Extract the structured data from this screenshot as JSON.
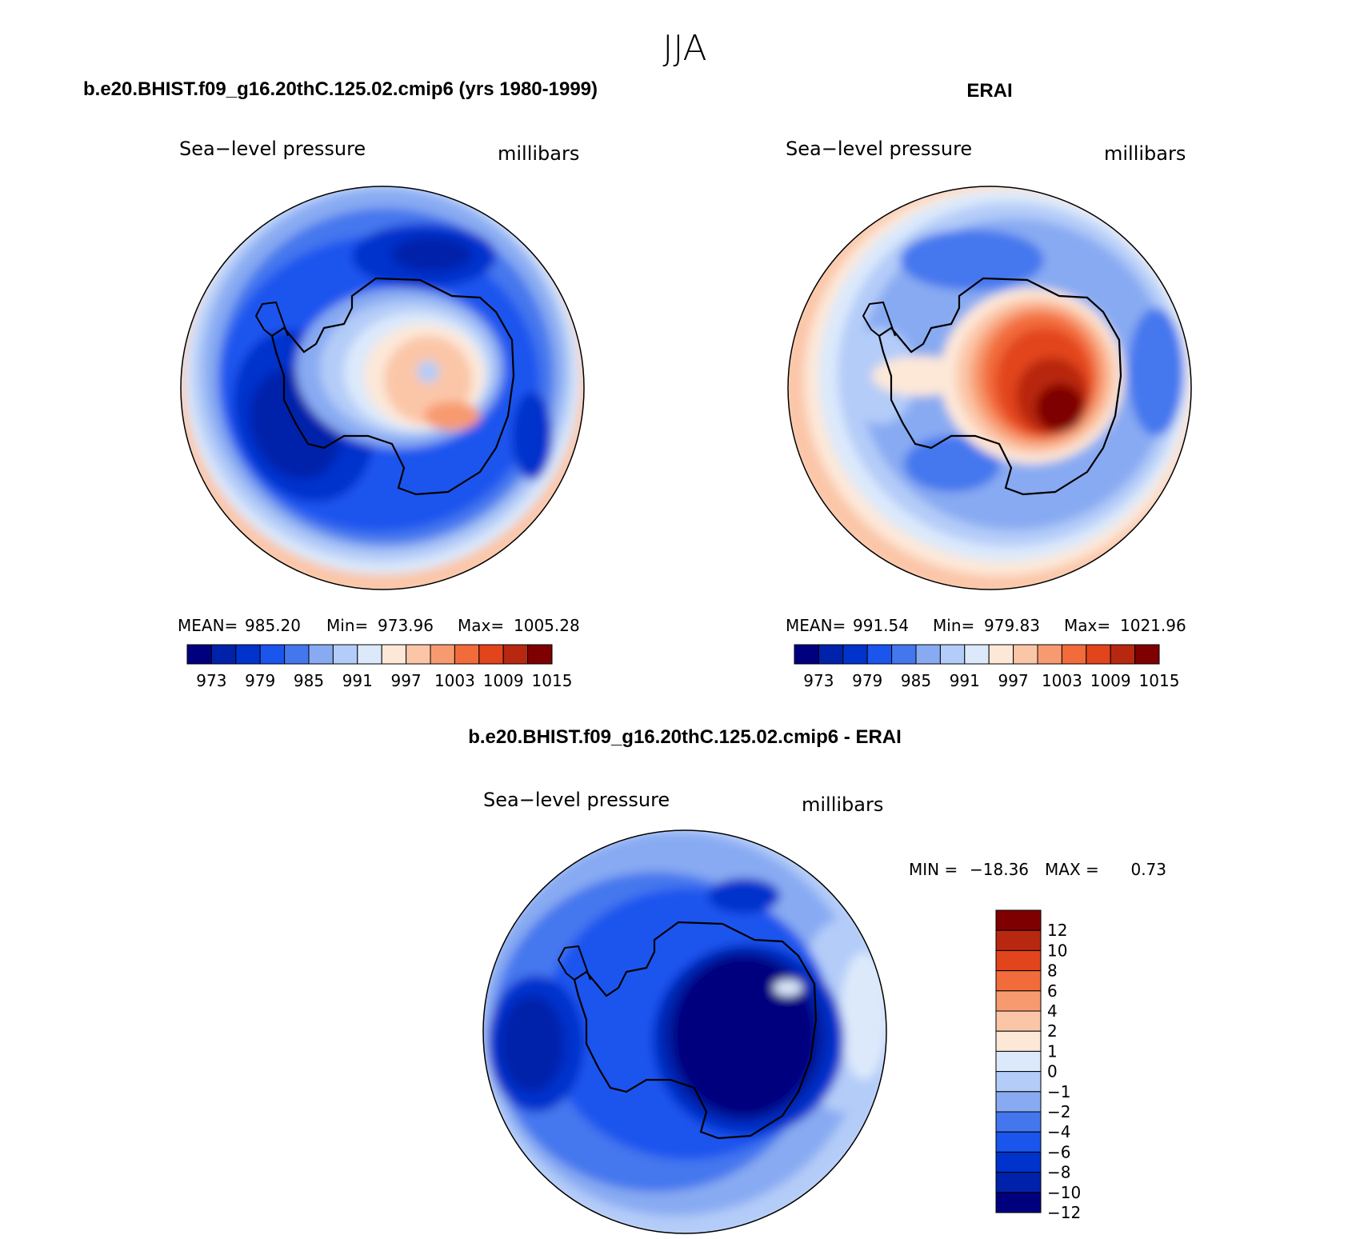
{
  "season": "JJA",
  "palette_blue_red": [
    "#00007f",
    "#0022aa",
    "#0033cc",
    "#1a55ee",
    "#4477ee",
    "#88aaf2",
    "#b4ccf8",
    "#dbe9fb",
    "#fde8d8",
    "#fbc6a8",
    "#f89a70",
    "#f26b3a",
    "#e2441c",
    "#b82810",
    "#7f0000"
  ],
  "palette_diff": [
    "#00007f",
    "#0022aa",
    "#0033cc",
    "#1a55ee",
    "#4477ee",
    "#88aaf2",
    "#b4ccf8",
    "#dbe9fb",
    "#fde8d8",
    "#fbc6a8",
    "#f89a70",
    "#f26b3a",
    "#e2441c",
    "#b82810",
    "#7f0000"
  ],
  "chart_data": [
    {
      "type": "heatmap",
      "projection": "south-polar-stereographic",
      "title": "b.e20.BHIST.f09_g16.20thC.125.02.cmip6 (yrs 1980-1999)",
      "left_label": "Sea−level pressure",
      "right_label": "millibars",
      "stats": {
        "mean_label": "MEAN=",
        "mean": "985.20",
        "min_label": "Min=",
        "min": "973.96",
        "max_label": "Max=",
        "max": "1005.28"
      },
      "colorbar": {
        "orientation": "horizontal",
        "levels": [
          973,
          976,
          979,
          982,
          985,
          988,
          991,
          994,
          997,
          1000,
          1003,
          1006,
          1009,
          1012,
          1015
        ],
        "tick_labels": [
          "973",
          "979",
          "985",
          "991",
          "997",
          "1003",
          "1009",
          "1015"
        ]
      }
    },
    {
      "type": "heatmap",
      "projection": "south-polar-stereographic",
      "title": "ERAI",
      "left_label": "Sea−level pressure",
      "right_label": "millibars",
      "stats": {
        "mean_label": "MEAN=",
        "mean": "991.54",
        "min_label": "Min=",
        "min": "979.83",
        "max_label": "Max=",
        "max": "1021.96"
      },
      "colorbar": {
        "orientation": "horizontal",
        "levels": [
          973,
          976,
          979,
          982,
          985,
          988,
          991,
          994,
          997,
          1000,
          1003,
          1006,
          1009,
          1012,
          1015
        ],
        "tick_labels": [
          "973",
          "979",
          "985",
          "991",
          "997",
          "1003",
          "1009",
          "1015"
        ]
      }
    },
    {
      "type": "heatmap",
      "projection": "south-polar-stereographic",
      "title": "b.e20.BHIST.f09_g16.20thC.125.02.cmip6 - ERAI",
      "left_label": "Sea−level pressure",
      "right_label": "millibars",
      "stats": {
        "min_label": "MIN =",
        "min": "−18.36",
        "max_label": "MAX =",
        "max": "0.73"
      },
      "colorbar": {
        "orientation": "vertical",
        "tick_labels": [
          "12",
          "10",
          "8",
          "6",
          "4",
          "2",
          "1",
          "0",
          "−1",
          "−2",
          "−4",
          "−6",
          "−8",
          "−10",
          "−12"
        ]
      }
    }
  ]
}
